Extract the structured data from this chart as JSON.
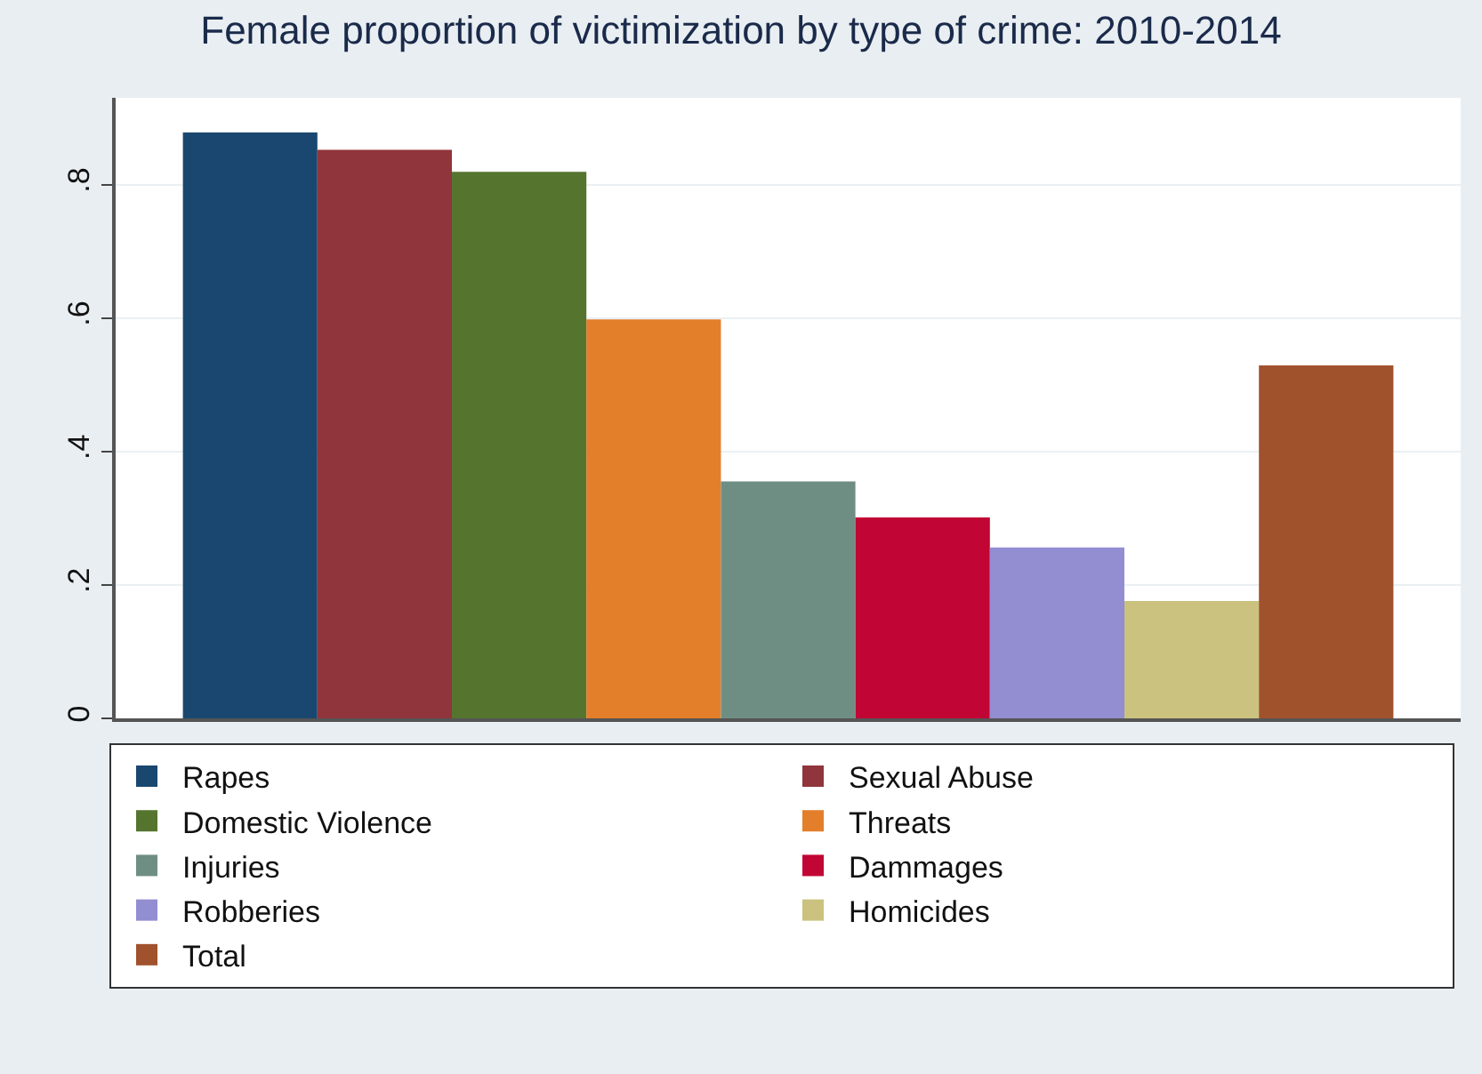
{
  "chart_data": {
    "type": "bar",
    "title": "Female proportion of victimization by type of crime: 2010-2014",
    "categories": [
      null
    ],
    "series": [
      {
        "name": "Rapes",
        "color": "#1a476f",
        "values": [
          0.878
        ]
      },
      {
        "name": "Sexual Abuse",
        "color": "#90353b",
        "values": [
          0.852
        ]
      },
      {
        "name": "Domestic Violence",
        "color": "#55752f",
        "values": [
          0.819
        ]
      },
      {
        "name": "Threats",
        "color": "#e37e2b",
        "values": [
          0.598
        ]
      },
      {
        "name": "Injuries",
        "color": "#6e8e84",
        "values": [
          0.355
        ]
      },
      {
        "name": "Dammages",
        "color": "#c10534",
        "values": [
          0.301
        ]
      },
      {
        "name": "Robberies",
        "color": "#938dd2",
        "values": [
          0.256
        ]
      },
      {
        "name": "Homicides",
        "color": "#cac27e",
        "values": [
          0.176
        ]
      },
      {
        "name": "Total",
        "color": "#a0522d",
        "values": [
          0.529
        ]
      }
    ],
    "ylim": [
      0,
      0.93
    ],
    "yticks": [
      {
        "value": 0,
        "label": "0"
      },
      {
        "value": 0.2,
        "label": ".2"
      },
      {
        "value": 0.4,
        "label": ".4"
      },
      {
        "value": 0.6,
        "label": ".6"
      },
      {
        "value": 0.8,
        "label": ".8"
      }
    ],
    "grid": "y",
    "legend": "bottom",
    "tick_labels": "y"
  }
}
